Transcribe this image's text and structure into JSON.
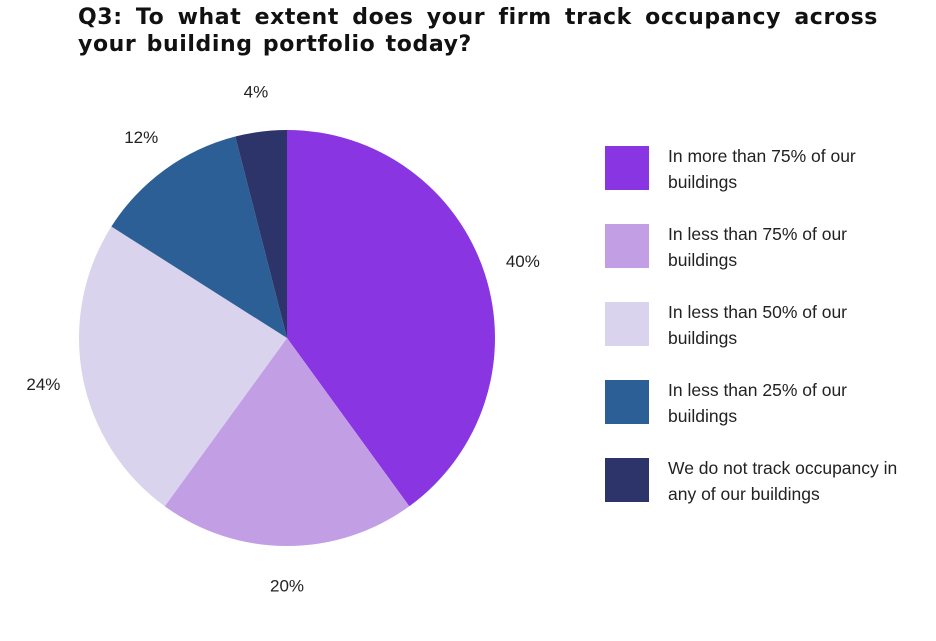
{
  "title": "Q3: To what extent does your firm track occupancy across your building portfolio today?",
  "chart_data": {
    "type": "pie",
    "title": "Q3: To what extent does your firm track occupancy across your building portfolio today?",
    "start": "12 o'clock",
    "direction": "clockwise",
    "legend_position": "right",
    "categories": [
      "In more than 75% of our buildings",
      "In less than 75% of our buildings",
      "In less than 50% of our buildings",
      "In less than 25% of our buildings",
      "We do not track occupancy in any of our buildings"
    ],
    "values": [
      40,
      20,
      24,
      12,
      4
    ],
    "labels": [
      "40%",
      "20%",
      "24%",
      "12%",
      "4%"
    ],
    "colors": [
      "#8936e2",
      "#c29fe4",
      "#d9d3ee",
      "#2c5f95",
      "#2d346a"
    ]
  }
}
